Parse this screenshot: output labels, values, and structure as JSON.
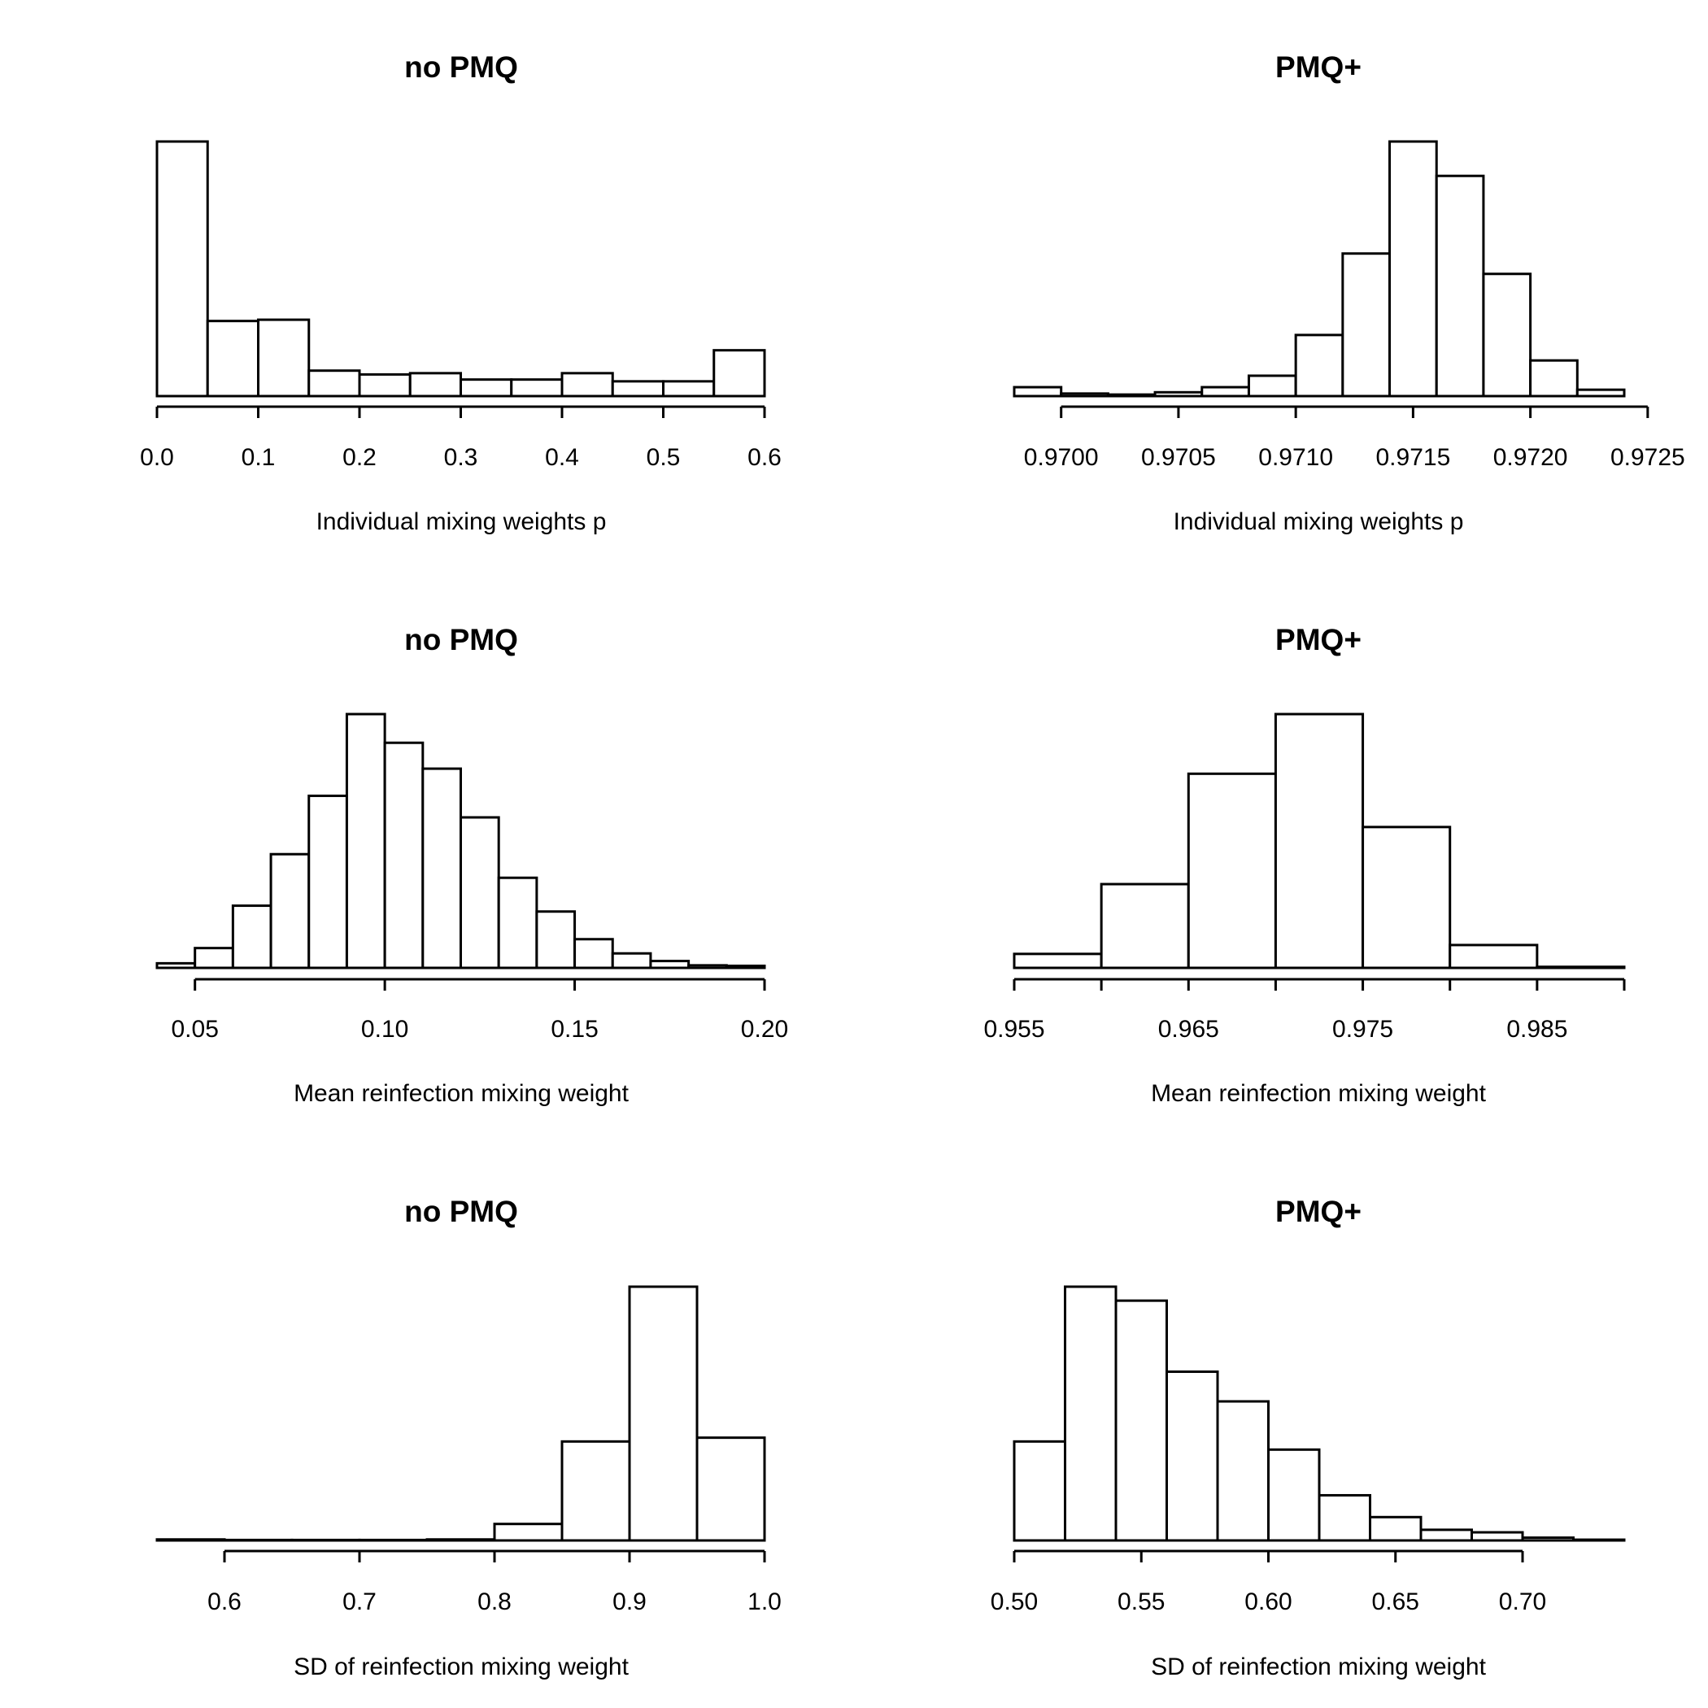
{
  "chart_data": [
    {
      "type": "bar",
      "title": "no PMQ",
      "xlabel": "Individual mixing weights p",
      "ylabel": "",
      "xlim": [
        0.0,
        0.6
      ],
      "ticks": [
        0.0,
        0.1,
        0.2,
        0.3,
        0.4,
        0.5,
        0.6
      ],
      "tick_labels": [
        "0.0",
        "0.1",
        "0.2",
        "0.3",
        "0.4",
        "0.5",
        "0.6"
      ],
      "bin_edges": [
        0.0,
        0.05,
        0.1,
        0.15,
        0.2,
        0.25,
        0.3,
        0.35,
        0.4,
        0.45,
        0.5,
        0.55,
        0.6
      ],
      "values": [
        1.0,
        0.295,
        0.3,
        0.1,
        0.085,
        0.09,
        0.065,
        0.065,
        0.09,
        0.058,
        0.058,
        0.18
      ]
    },
    {
      "type": "bar",
      "title": "PMQ+",
      "xlabel": "Individual mixing weights p",
      "ylabel": "",
      "xlim": [
        0.9698,
        0.9724
      ],
      "ticks": [
        0.97,
        0.9705,
        0.971,
        0.9715,
        0.972,
        0.9725
      ],
      "tick_labels": [
        "0.9700",
        "0.9705",
        "0.9710",
        "0.9715",
        "0.9720",
        "0.9725"
      ],
      "bin_edges": [
        0.9698,
        0.97,
        0.9702,
        0.9704,
        0.9706,
        0.9708,
        0.971,
        0.9712,
        0.9714,
        0.9716,
        0.9718,
        0.972,
        0.9722,
        0.9724
      ],
      "values": [
        0.035,
        0.01,
        0.006,
        0.015,
        0.035,
        0.08,
        0.24,
        0.56,
        1.0,
        0.865,
        0.48,
        0.14,
        0.025
      ]
    },
    {
      "type": "bar",
      "title": "no PMQ",
      "xlabel": "Mean reinfection mixing weight",
      "ylabel": "",
      "xlim": [
        0.04,
        0.2
      ],
      "ticks": [
        0.05,
        0.1,
        0.15,
        0.2
      ],
      "tick_labels": [
        "0.05",
        "0.10",
        "0.15",
        "0.20"
      ],
      "bin_edges": [
        0.04,
        0.05,
        0.06,
        0.07,
        0.08,
        0.09,
        0.1,
        0.11,
        0.12,
        0.13,
        0.14,
        0.15,
        0.16,
        0.17,
        0.18,
        0.19,
        0.2
      ],
      "values": [
        0.018,
        0.078,
        0.245,
        0.448,
        0.678,
        1.0,
        0.887,
        0.785,
        0.593,
        0.355,
        0.222,
        0.113,
        0.057,
        0.027,
        0.01,
        0.008
      ]
    },
    {
      "type": "bar",
      "title": "PMQ+",
      "xlabel": "Mean reinfection mixing weight",
      "ylabel": "",
      "xlim": [
        0.955,
        0.99
      ],
      "ticks": [
        0.955,
        0.96,
        0.965,
        0.97,
        0.975,
        0.98,
        0.985,
        0.99
      ],
      "tick_labels": [
        "0.955",
        "",
        "0.965",
        "",
        "0.975",
        "",
        "0.985",
        ""
      ],
      "bin_edges": [
        0.955,
        0.96,
        0.965,
        0.97,
        0.975,
        0.98,
        0.985,
        0.99
      ],
      "values": [
        0.055,
        0.33,
        0.765,
        1.0,
        0.555,
        0.09,
        0.004
      ]
    },
    {
      "type": "bar",
      "title": "no PMQ",
      "xlabel": "SD of reinfection mixing weight",
      "ylabel": "",
      "xlim": [
        0.55,
        1.0
      ],
      "ticks": [
        0.6,
        0.7,
        0.8,
        0.9,
        1.0
      ],
      "tick_labels": [
        "0.6",
        "0.7",
        "0.8",
        "0.9",
        "1.0"
      ],
      "bin_edges": [
        0.55,
        0.6,
        0.65,
        0.7,
        0.75,
        0.8,
        0.85,
        0.9,
        0.95,
        1.0
      ],
      "values": [
        0.004,
        0.001,
        0.001,
        0.001,
        0.004,
        0.065,
        0.39,
        1.0,
        0.405
      ]
    },
    {
      "type": "bar",
      "title": "PMQ+",
      "xlabel": "SD of reinfection mixing weight",
      "ylabel": "",
      "xlim": [
        0.5,
        0.74
      ],
      "ticks": [
        0.5,
        0.55,
        0.6,
        0.65,
        0.7
      ],
      "tick_labels": [
        "0.50",
        "0.55",
        "0.60",
        "0.65",
        "0.70"
      ],
      "bin_edges": [
        0.5,
        0.52,
        0.54,
        0.56,
        0.58,
        0.6,
        0.62,
        0.64,
        0.66,
        0.68,
        0.7,
        0.72,
        0.74
      ],
      "values": [
        0.39,
        1.0,
        0.945,
        0.665,
        0.548,
        0.358,
        0.178,
        0.092,
        0.042,
        0.032,
        0.011,
        0.003
      ]
    }
  ]
}
